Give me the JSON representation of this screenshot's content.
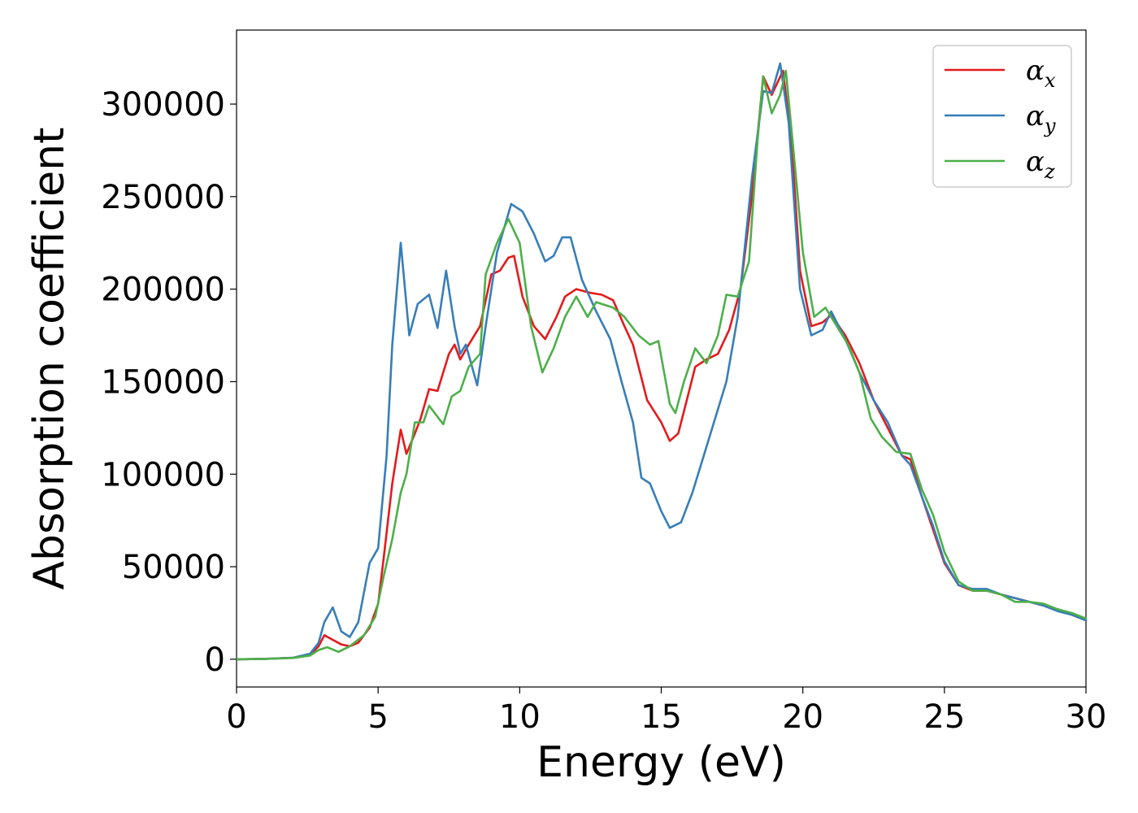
{
  "chart_data": {
    "type": "line",
    "title": "",
    "xlabel": "Energy (eV)",
    "ylabel": "Absorption coefficient",
    "xlim": [
      0,
      30
    ],
    "ylim": [
      -15000,
      340000
    ],
    "x_ticks": [
      0,
      5,
      10,
      15,
      20,
      25,
      30
    ],
    "y_ticks": [
      0,
      50000,
      100000,
      150000,
      200000,
      250000,
      300000
    ],
    "grid": false,
    "legend_position": "top-right",
    "series": [
      {
        "name": "αx",
        "legend_base": "α",
        "legend_sub": "x",
        "color": "#e41a1c",
        "points": [
          [
            0,
            0
          ],
          [
            1,
            200
          ],
          [
            2,
            800
          ],
          [
            2.6,
            2500
          ],
          [
            2.9,
            7000
          ],
          [
            3.1,
            13000
          ],
          [
            3.4,
            10500
          ],
          [
            3.7,
            8000
          ],
          [
            4.0,
            7000
          ],
          [
            4.3,
            9000
          ],
          [
            4.7,
            17000
          ],
          [
            5.0,
            30000
          ],
          [
            5.2,
            55000
          ],
          [
            5.5,
            95000
          ],
          [
            5.8,
            124000
          ],
          [
            6.0,
            111000
          ],
          [
            6.3,
            122000
          ],
          [
            6.5,
            130000
          ],
          [
            6.8,
            146000
          ],
          [
            7.1,
            145000
          ],
          [
            7.5,
            165000
          ],
          [
            7.7,
            170000
          ],
          [
            7.9,
            162000
          ],
          [
            8.2,
            170000
          ],
          [
            8.6,
            180000
          ],
          [
            9.0,
            208000
          ],
          [
            9.3,
            210000
          ],
          [
            9.6,
            217000
          ],
          [
            9.8,
            218000
          ],
          [
            10.1,
            196000
          ],
          [
            10.5,
            180000
          ],
          [
            10.9,
            173000
          ],
          [
            11.3,
            185000
          ],
          [
            11.6,
            196000
          ],
          [
            12.0,
            200000
          ],
          [
            12.5,
            198000
          ],
          [
            12.9,
            197000
          ],
          [
            13.3,
            194000
          ],
          [
            13.7,
            180000
          ],
          [
            14.0,
            170000
          ],
          [
            14.5,
            140000
          ],
          [
            15.0,
            128000
          ],
          [
            15.3,
            118000
          ],
          [
            15.6,
            122000
          ],
          [
            15.9,
            140000
          ],
          [
            16.2,
            158000
          ],
          [
            16.6,
            162000
          ],
          [
            17.0,
            165000
          ],
          [
            17.4,
            178000
          ],
          [
            17.8,
            200000
          ],
          [
            18.2,
            250000
          ],
          [
            18.6,
            315000
          ],
          [
            18.9,
            305000
          ],
          [
            19.3,
            318000
          ],
          [
            19.6,
            280000
          ],
          [
            19.9,
            210000
          ],
          [
            20.3,
            180000
          ],
          [
            20.7,
            182000
          ],
          [
            21.0,
            186000
          ],
          [
            21.5,
            175000
          ],
          [
            22.0,
            160000
          ],
          [
            22.5,
            140000
          ],
          [
            23.0,
            125000
          ],
          [
            23.5,
            110000
          ],
          [
            23.8,
            108000
          ],
          [
            24.2,
            88000
          ],
          [
            24.6,
            70000
          ],
          [
            25.0,
            52000
          ],
          [
            25.5,
            40000
          ],
          [
            26.0,
            37000
          ],
          [
            26.5,
            37000
          ],
          [
            27.0,
            35000
          ],
          [
            27.5,
            33000
          ],
          [
            28.0,
            31000
          ],
          [
            28.5,
            29000
          ],
          [
            29.0,
            27000
          ],
          [
            29.5,
            24000
          ],
          [
            30,
            21000
          ]
        ]
      },
      {
        "name": "αy",
        "legend_base": "α",
        "legend_sub": "y",
        "color": "#377eb8",
        "points": [
          [
            0,
            0
          ],
          [
            1,
            200
          ],
          [
            2,
            800
          ],
          [
            2.6,
            3000
          ],
          [
            2.9,
            9000
          ],
          [
            3.1,
            20000
          ],
          [
            3.4,
            28000
          ],
          [
            3.7,
            15000
          ],
          [
            4.0,
            12000
          ],
          [
            4.3,
            20000
          ],
          [
            4.7,
            52000
          ],
          [
            5.0,
            60000
          ],
          [
            5.3,
            110000
          ],
          [
            5.5,
            170000
          ],
          [
            5.8,
            225000
          ],
          [
            6.1,
            175000
          ],
          [
            6.4,
            192000
          ],
          [
            6.8,
            197000
          ],
          [
            7.1,
            179000
          ],
          [
            7.4,
            210000
          ],
          [
            7.7,
            180000
          ],
          [
            7.9,
            165000
          ],
          [
            8.1,
            170000
          ],
          [
            8.5,
            148000
          ],
          [
            8.8,
            180000
          ],
          [
            9.2,
            220000
          ],
          [
            9.7,
            246000
          ],
          [
            10.1,
            242000
          ],
          [
            10.5,
            230000
          ],
          [
            10.9,
            215000
          ],
          [
            11.2,
            218000
          ],
          [
            11.5,
            228000
          ],
          [
            11.8,
            228000
          ],
          [
            12.2,
            205000
          ],
          [
            12.7,
            188000
          ],
          [
            13.2,
            173000
          ],
          [
            13.6,
            150000
          ],
          [
            14.0,
            128000
          ],
          [
            14.3,
            98000
          ],
          [
            14.6,
            95000
          ],
          [
            15.0,
            80000
          ],
          [
            15.3,
            71000
          ],
          [
            15.7,
            74000
          ],
          [
            16.1,
            90000
          ],
          [
            16.5,
            110000
          ],
          [
            16.9,
            130000
          ],
          [
            17.3,
            150000
          ],
          [
            17.7,
            185000
          ],
          [
            18.2,
            260000
          ],
          [
            18.6,
            307000
          ],
          [
            18.9,
            306000
          ],
          [
            19.2,
            322000
          ],
          [
            19.5,
            290000
          ],
          [
            19.9,
            200000
          ],
          [
            20.3,
            175000
          ],
          [
            20.7,
            178000
          ],
          [
            21.0,
            188000
          ],
          [
            21.5,
            173000
          ],
          [
            22.0,
            155000
          ],
          [
            22.5,
            140000
          ],
          [
            23.0,
            128000
          ],
          [
            23.5,
            110000
          ],
          [
            23.8,
            105000
          ],
          [
            24.2,
            88000
          ],
          [
            24.6,
            72000
          ],
          [
            25.0,
            53000
          ],
          [
            25.5,
            40000
          ],
          [
            26.0,
            38000
          ],
          [
            26.5,
            38000
          ],
          [
            27.0,
            35000
          ],
          [
            27.5,
            33000
          ],
          [
            28.0,
            31000
          ],
          [
            28.5,
            29000
          ],
          [
            29.0,
            26000
          ],
          [
            29.5,
            24000
          ],
          [
            30,
            21000
          ]
        ]
      },
      {
        "name": "αz",
        "legend_base": "α",
        "legend_sub": "z",
        "color": "#4daf4a",
        "points": [
          [
            0,
            0
          ],
          [
            1,
            200
          ],
          [
            2,
            700
          ],
          [
            2.6,
            2000
          ],
          [
            2.9,
            5000
          ],
          [
            3.2,
            6500
          ],
          [
            3.6,
            4000
          ],
          [
            4.0,
            7000
          ],
          [
            4.5,
            13000
          ],
          [
            4.9,
            23000
          ],
          [
            5.2,
            45000
          ],
          [
            5.5,
            65000
          ],
          [
            5.8,
            90000
          ],
          [
            6.0,
            100000
          ],
          [
            6.3,
            128000
          ],
          [
            6.6,
            128000
          ],
          [
            6.8,
            137000
          ],
          [
            7.3,
            127000
          ],
          [
            7.6,
            142000
          ],
          [
            7.9,
            145000
          ],
          [
            8.2,
            158000
          ],
          [
            8.6,
            165000
          ],
          [
            8.8,
            208000
          ],
          [
            9.2,
            225000
          ],
          [
            9.6,
            238000
          ],
          [
            10.0,
            225000
          ],
          [
            10.4,
            180000
          ],
          [
            10.8,
            155000
          ],
          [
            11.2,
            168000
          ],
          [
            11.6,
            185000
          ],
          [
            12.0,
            196000
          ],
          [
            12.4,
            185000
          ],
          [
            12.7,
            193000
          ],
          [
            13.3,
            190000
          ],
          [
            13.7,
            185000
          ],
          [
            14.2,
            175000
          ],
          [
            14.6,
            170000
          ],
          [
            14.9,
            172000
          ],
          [
            15.3,
            138000
          ],
          [
            15.5,
            133000
          ],
          [
            15.8,
            150000
          ],
          [
            16.2,
            168000
          ],
          [
            16.6,
            160000
          ],
          [
            17.0,
            175000
          ],
          [
            17.3,
            197000
          ],
          [
            17.7,
            196000
          ],
          [
            18.1,
            215000
          ],
          [
            18.4,
            280000
          ],
          [
            18.6,
            315000
          ],
          [
            18.9,
            295000
          ],
          [
            19.2,
            305000
          ],
          [
            19.4,
            318000
          ],
          [
            19.7,
            270000
          ],
          [
            20.0,
            220000
          ],
          [
            20.4,
            185000
          ],
          [
            20.8,
            190000
          ],
          [
            21.2,
            180000
          ],
          [
            21.6,
            170000
          ],
          [
            22.0,
            155000
          ],
          [
            22.4,
            130000
          ],
          [
            22.8,
            120000
          ],
          [
            23.3,
            112000
          ],
          [
            23.8,
            111000
          ],
          [
            24.2,
            92000
          ],
          [
            24.6,
            78000
          ],
          [
            25.0,
            58000
          ],
          [
            25.5,
            42000
          ],
          [
            26.0,
            37000
          ],
          [
            26.5,
            37000
          ],
          [
            27.0,
            35000
          ],
          [
            27.5,
            31000
          ],
          [
            28.0,
            31000
          ],
          [
            28.5,
            30000
          ],
          [
            29.0,
            27000
          ],
          [
            29.5,
            25000
          ],
          [
            30,
            22000
          ]
        ]
      }
    ]
  }
}
